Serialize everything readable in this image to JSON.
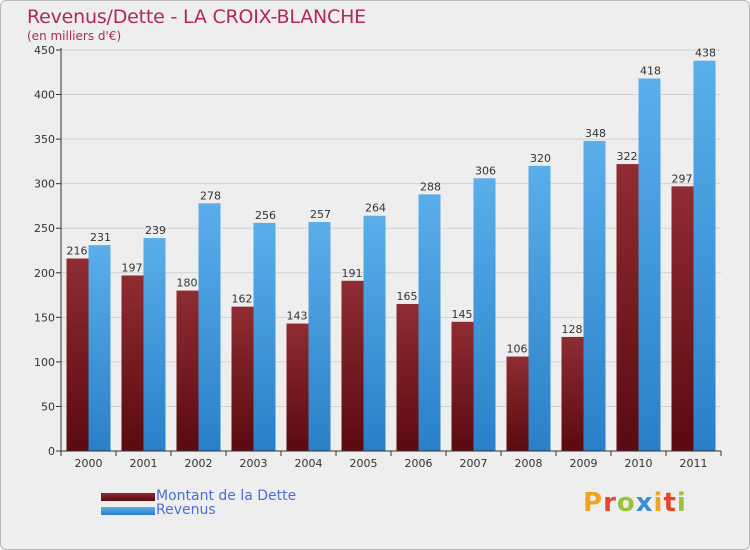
{
  "chart_data": {
    "type": "bar",
    "title": "Revenus/Dette - LA CROIX-BLANCHE",
    "subtitle": "(en milliers d'€)",
    "xlabel": "",
    "ylabel": "",
    "ylim": [
      0,
      450
    ],
    "yticks": [
      0,
      50,
      100,
      150,
      200,
      250,
      300,
      350,
      400,
      450
    ],
    "grid": true,
    "legend_position": "bottom-left",
    "categories": [
      "2000",
      "2001",
      "2002",
      "2003",
      "2004",
      "2005",
      "2006",
      "2007",
      "2008",
      "2009",
      "2010",
      "2011"
    ],
    "series": [
      {
        "name": "Montant de la Dette",
        "color": "#7a1e24",
        "values": [
          216,
          197,
          180,
          162,
          143,
          191,
          165,
          145,
          106,
          128,
          322,
          297
        ]
      },
      {
        "name": "Revenus",
        "color": "#4aa2e2",
        "values": [
          231,
          239,
          278,
          256,
          257,
          264,
          288,
          306,
          320,
          348,
          418,
          438
        ]
      }
    ]
  },
  "logo": {
    "letters": [
      "P",
      "r",
      "o",
      "x",
      "i",
      "t",
      "i"
    ],
    "colors": [
      "#f0a51e",
      "#e8462a",
      "#9ac23c",
      "#3a8fd8",
      "#f0a51e",
      "#e8462a",
      "#9ac23c"
    ]
  }
}
